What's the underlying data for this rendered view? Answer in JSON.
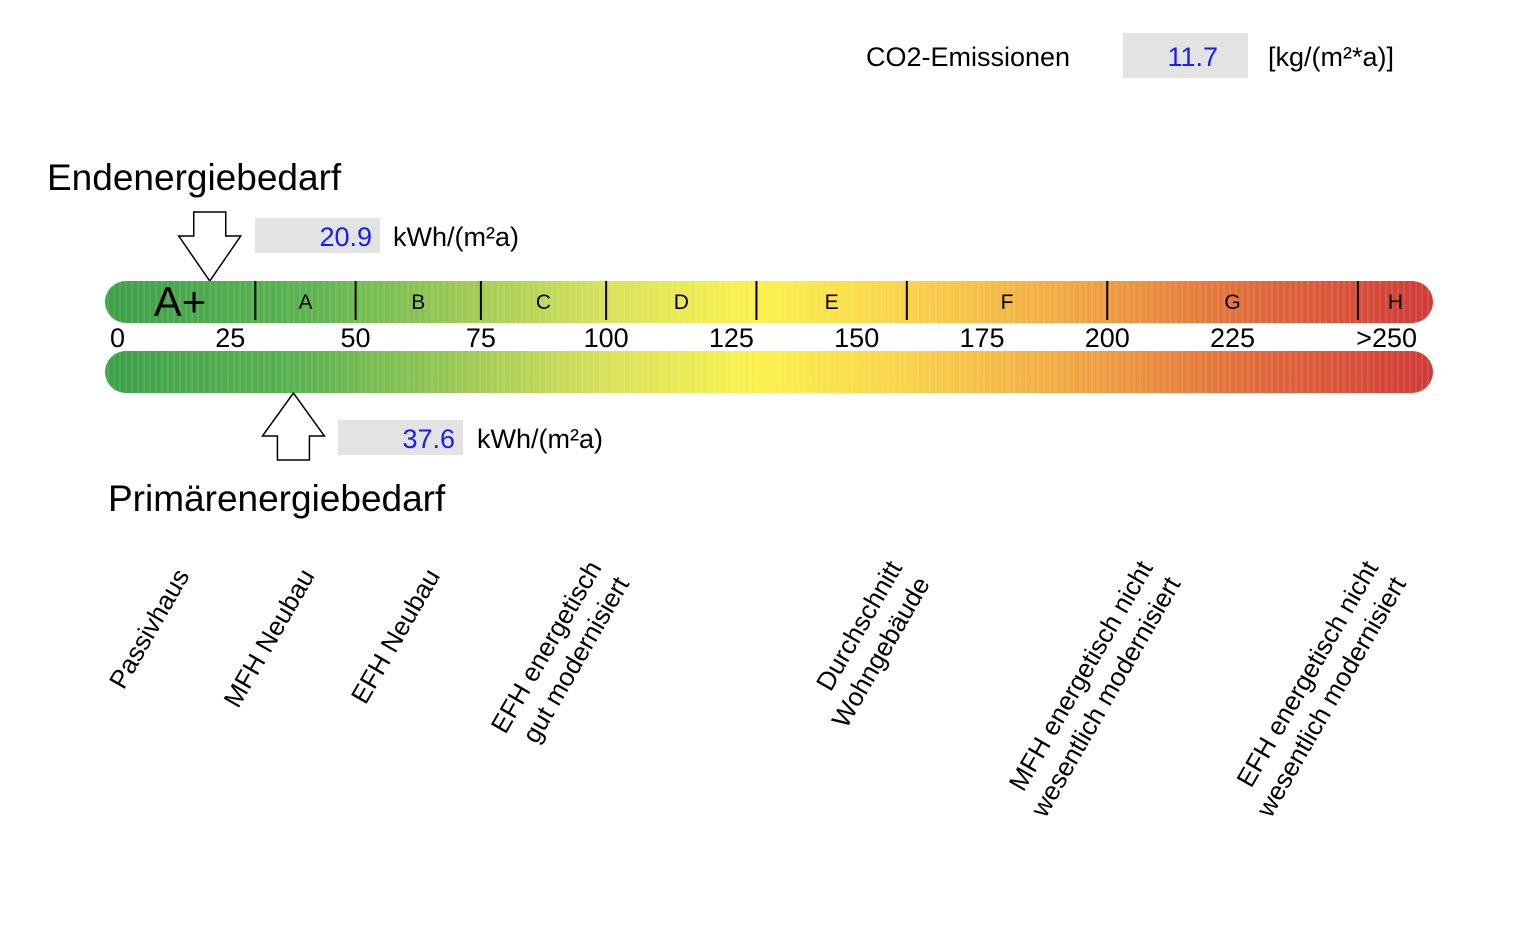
{
  "co2": {
    "label": "CO2-Emissionen",
    "value": "11.7",
    "unit": "[kg/(m²*a)]"
  },
  "final_energy": {
    "title": "Endenergiebedarf",
    "value": 20.9,
    "value_text": "20.9",
    "unit": "kWh/(m²a)"
  },
  "primary_energy": {
    "title": "Primärenergiebedarf",
    "value": 37.6,
    "value_text": "37.6",
    "unit": "kWh/(m²a)"
  },
  "chart_data": {
    "type": "scale",
    "xlim": [
      0,
      265
    ],
    "classes": [
      {
        "label": "A+",
        "from": 0,
        "to": 30
      },
      {
        "label": "A",
        "from": 30,
        "to": 50
      },
      {
        "label": "B",
        "from": 50,
        "to": 75
      },
      {
        "label": "C",
        "from": 75,
        "to": 100
      },
      {
        "label": "D",
        "from": 100,
        "to": 130
      },
      {
        "label": "E",
        "from": 130,
        "to": 160
      },
      {
        "label": "F",
        "from": 160,
        "to": 200
      },
      {
        "label": "G",
        "from": 200,
        "to": 250
      },
      {
        "label": "H",
        "from": 250,
        "to": 265
      }
    ],
    "ticks": [
      {
        "value": 0,
        "label": "0"
      },
      {
        "value": 25,
        "label": "25"
      },
      {
        "value": 50,
        "label": "50"
      },
      {
        "value": 75,
        "label": "75"
      },
      {
        "value": 100,
        "label": "100"
      },
      {
        "value": 125,
        "label": "125"
      },
      {
        "value": 150,
        "label": "150"
      },
      {
        "value": 175,
        "label": "175"
      },
      {
        "value": 200,
        "label": "200"
      },
      {
        "value": 225,
        "label": "225"
      },
      {
        "value": 250,
        "label": ">250"
      }
    ],
    "gradient": [
      {
        "value": 0,
        "color": "#3da14b"
      },
      {
        "value": 40,
        "color": "#5cb350"
      },
      {
        "value": 75,
        "color": "#a4cc55"
      },
      {
        "value": 100,
        "color": "#d9e25a"
      },
      {
        "value": 130,
        "color": "#fbf24c"
      },
      {
        "value": 160,
        "color": "#f9d34a"
      },
      {
        "value": 195,
        "color": "#f0a443"
      },
      {
        "value": 230,
        "color": "#e0693a"
      },
      {
        "value": 265,
        "color": "#d03a38"
      }
    ],
    "building_types": [
      {
        "value": 15,
        "lines": [
          "Passivhaus"
        ]
      },
      {
        "value": 40,
        "lines": [
          "MFH Neubau"
        ]
      },
      {
        "value": 65,
        "lines": [
          "EFH Neubau"
        ]
      },
      {
        "value": 100,
        "lines": [
          "EFH energetisch",
          "gut modernisiert"
        ]
      },
      {
        "value": 160,
        "lines": [
          "Durchschnitt",
          "Wohngebäude"
        ]
      },
      {
        "value": 210,
        "lines": [
          "MFH energetisch nicht",
          "wesentlich modernisiert"
        ]
      },
      {
        "value": 255,
        "lines": [
          "EFH energetisch nicht",
          "wesentlich modernisiert"
        ]
      }
    ]
  }
}
